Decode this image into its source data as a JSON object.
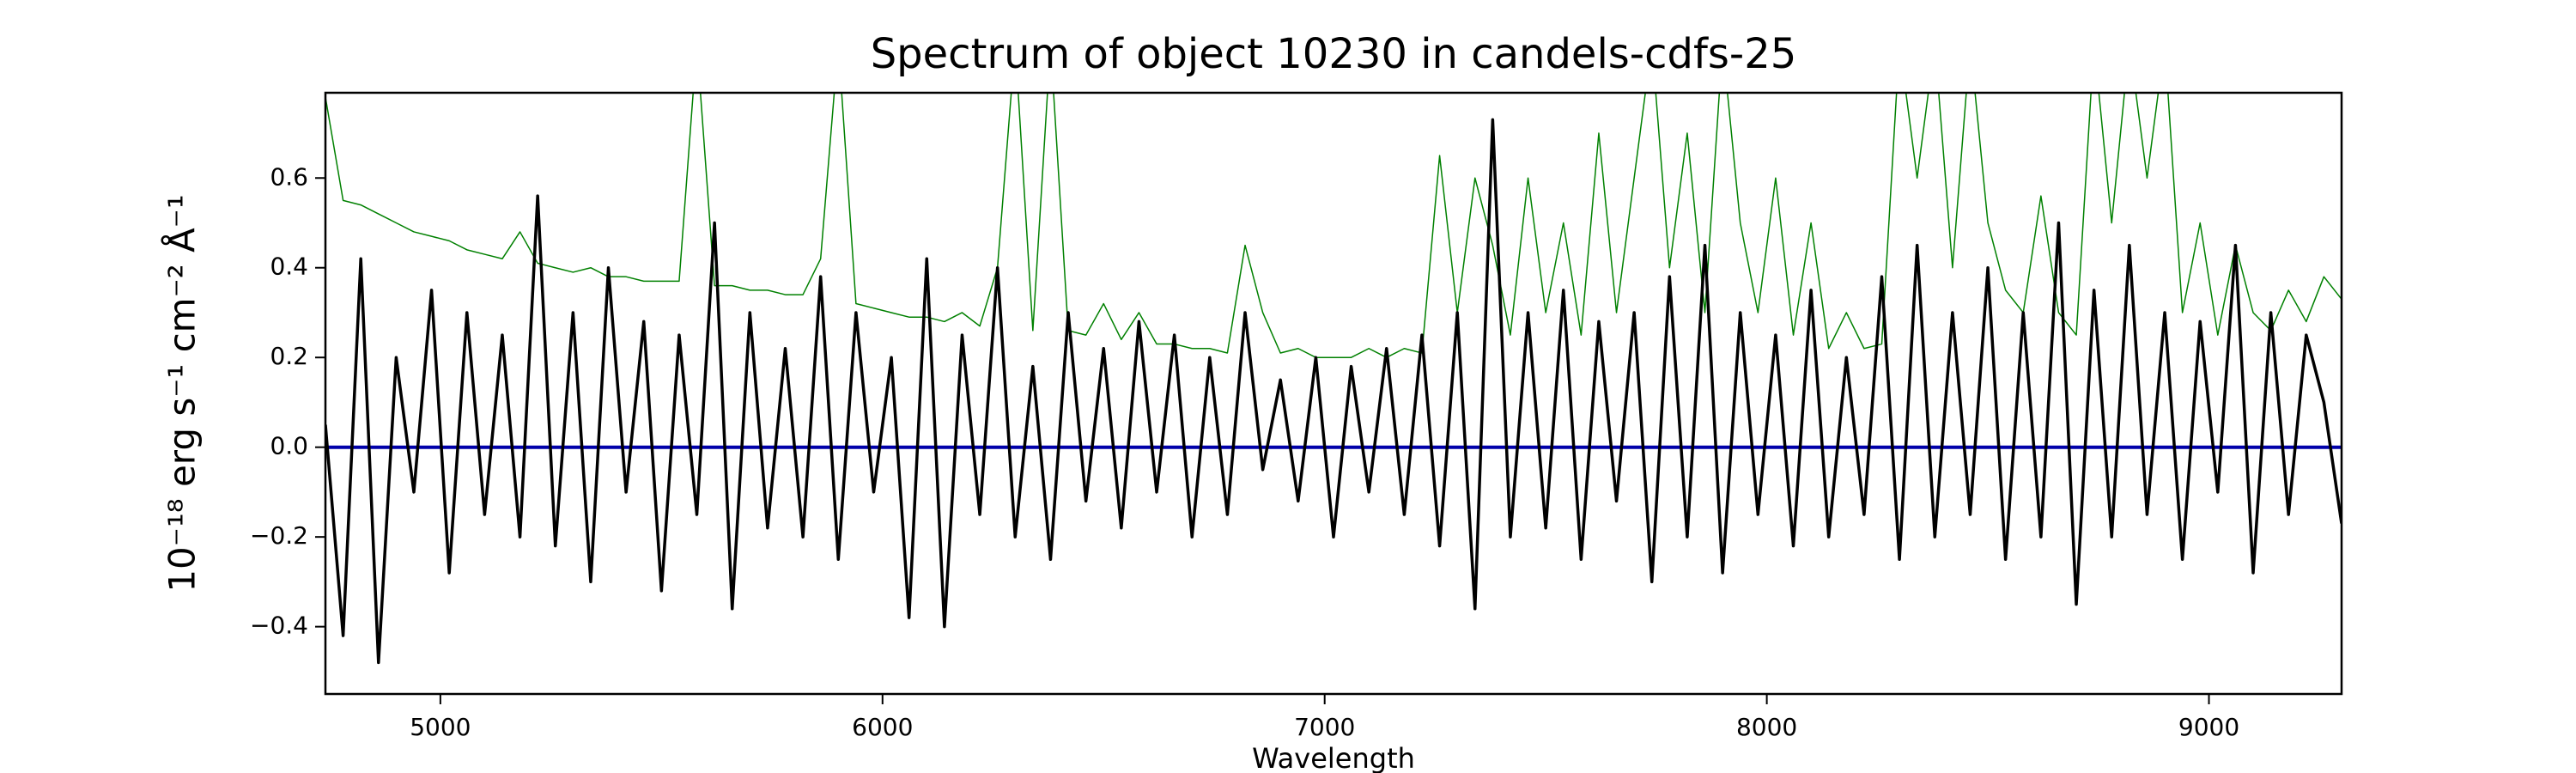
{
  "chart_data": {
    "type": "line",
    "title": "Spectrum of object 10230 in candels-cdfs-25",
    "x_label": "Wavelength",
    "y_label": "10⁻¹⁸ erg s⁻¹ cm⁻² Å⁻¹",
    "xlim": [
      4740,
      9300
    ],
    "ylim": [
      -0.55,
      0.79
    ],
    "xticks": [
      5000,
      6000,
      7000,
      8000,
      9000
    ],
    "yticks": [
      {
        "value": -0.4,
        "label": "−0.4"
      },
      {
        "value": -0.2,
        "label": "−0.2"
      },
      {
        "value": 0,
        "label": "0.0"
      },
      0.2,
      0.4,
      0.6
    ],
    "x": [
      4740,
      4780,
      4820,
      4860,
      4900,
      4940,
      4980,
      5020,
      5060,
      5100,
      5140,
      5180,
      5220,
      5260,
      5300,
      5340,
      5380,
      5420,
      5460,
      5500,
      5540,
      5580,
      5620,
      5660,
      5700,
      5740,
      5780,
      5820,
      5860,
      5900,
      5940,
      5980,
      6020,
      6060,
      6100,
      6140,
      6180,
      6220,
      6260,
      6300,
      6340,
      6380,
      6420,
      6460,
      6500,
      6540,
      6580,
      6620,
      6660,
      6700,
      6740,
      6780,
      6820,
      6860,
      6900,
      6940,
      6980,
      7020,
      7060,
      7100,
      7140,
      7180,
      7220,
      7260,
      7300,
      7340,
      7380,
      7420,
      7460,
      7500,
      7540,
      7580,
      7620,
      7660,
      7700,
      7740,
      7780,
      7820,
      7860,
      7900,
      7940,
      7980,
      8020,
      8060,
      8100,
      8140,
      8180,
      8220,
      8260,
      8300,
      8340,
      8380,
      8420,
      8460,
      8500,
      8540,
      8580,
      8620,
      8660,
      8700,
      8740,
      8780,
      8820,
      8860,
      8900,
      8940,
      8980,
      9020,
      9060,
      9100,
      9140,
      9180,
      9220,
      9260,
      9300
    ],
    "series": [
      {
        "color": "#008000",
        "width": 1.5,
        "values": [
          0.78,
          0.55,
          0.54,
          0.52,
          0.5,
          0.48,
          0.47,
          0.46,
          0.44,
          0.43,
          0.42,
          0.48,
          0.41,
          0.4,
          0.39,
          0.4,
          0.38,
          0.38,
          0.37,
          0.37,
          0.37,
          0.9,
          0.36,
          0.36,
          0.35,
          0.35,
          0.34,
          0.34,
          0.42,
          0.9,
          0.32,
          0.31,
          0.3,
          0.29,
          0.29,
          0.28,
          0.3,
          0.27,
          0.4,
          0.9,
          0.26,
          0.9,
          0.26,
          0.25,
          0.32,
          0.24,
          0.3,
          0.23,
          0.23,
          0.22,
          0.22,
          0.21,
          0.45,
          0.3,
          0.21,
          0.22,
          0.2,
          0.2,
          0.2,
          0.22,
          0.2,
          0.22,
          0.21,
          0.65,
          0.3,
          0.6,
          0.45,
          0.25,
          0.6,
          0.3,
          0.5,
          0.25,
          0.7,
          0.3,
          0.6,
          0.9,
          0.4,
          0.7,
          0.3,
          0.9,
          0.5,
          0.3,
          0.6,
          0.25,
          0.5,
          0.22,
          0.3,
          0.22,
          0.23,
          0.9,
          0.6,
          0.9,
          0.4,
          0.9,
          0.5,
          0.35,
          0.3,
          0.56,
          0.3,
          0.25,
          0.9,
          0.5,
          0.9,
          0.6,
          0.9,
          0.3,
          0.5,
          0.25,
          0.45,
          0.3,
          0.26,
          0.35,
          0.28,
          0.38,
          0.33
        ]
      },
      {
        "color": "#0000aa",
        "width": 4,
        "x": [
          4740,
          9300
        ],
        "values": [
          0,
          0
        ]
      },
      {
        "color": "#000000",
        "width": 3.5,
        "values": [
          0.05,
          -0.42,
          0.42,
          -0.48,
          0.2,
          -0.1,
          0.35,
          -0.28,
          0.3,
          -0.15,
          0.25,
          -0.2,
          0.56,
          -0.22,
          0.3,
          -0.3,
          0.4,
          -0.1,
          0.28,
          -0.32,
          0.25,
          -0.15,
          0.5,
          -0.36,
          0.3,
          -0.18,
          0.22,
          -0.2,
          0.38,
          -0.25,
          0.3,
          -0.1,
          0.2,
          -0.38,
          0.42,
          -0.4,
          0.25,
          -0.15,
          0.4,
          -0.2,
          0.18,
          -0.25,
          0.3,
          -0.12,
          0.22,
          -0.18,
          0.28,
          -0.1,
          0.25,
          -0.2,
          0.2,
          -0.15,
          0.3,
          -0.05,
          0.15,
          -0.12,
          0.2,
          -0.2,
          0.18,
          -0.1,
          0.22,
          -0.15,
          0.25,
          -0.22,
          0.3,
          -0.36,
          0.73,
          -0.2,
          0.3,
          -0.18,
          0.35,
          -0.25,
          0.28,
          -0.12,
          0.3,
          -0.3,
          0.38,
          -0.2,
          0.45,
          -0.28,
          0.3,
          -0.15,
          0.25,
          -0.22,
          0.35,
          -0.2,
          0.2,
          -0.15,
          0.38,
          -0.25,
          0.45,
          -0.2,
          0.3,
          -0.15,
          0.4,
          -0.25,
          0.3,
          -0.2,
          0.5,
          -0.35,
          0.35,
          -0.2,
          0.45,
          -0.15,
          0.3,
          -0.25,
          0.28,
          -0.1,
          0.45,
          -0.28,
          0.3,
          -0.15,
          0.25,
          0.1,
          -0.17
        ]
      }
    ]
  }
}
